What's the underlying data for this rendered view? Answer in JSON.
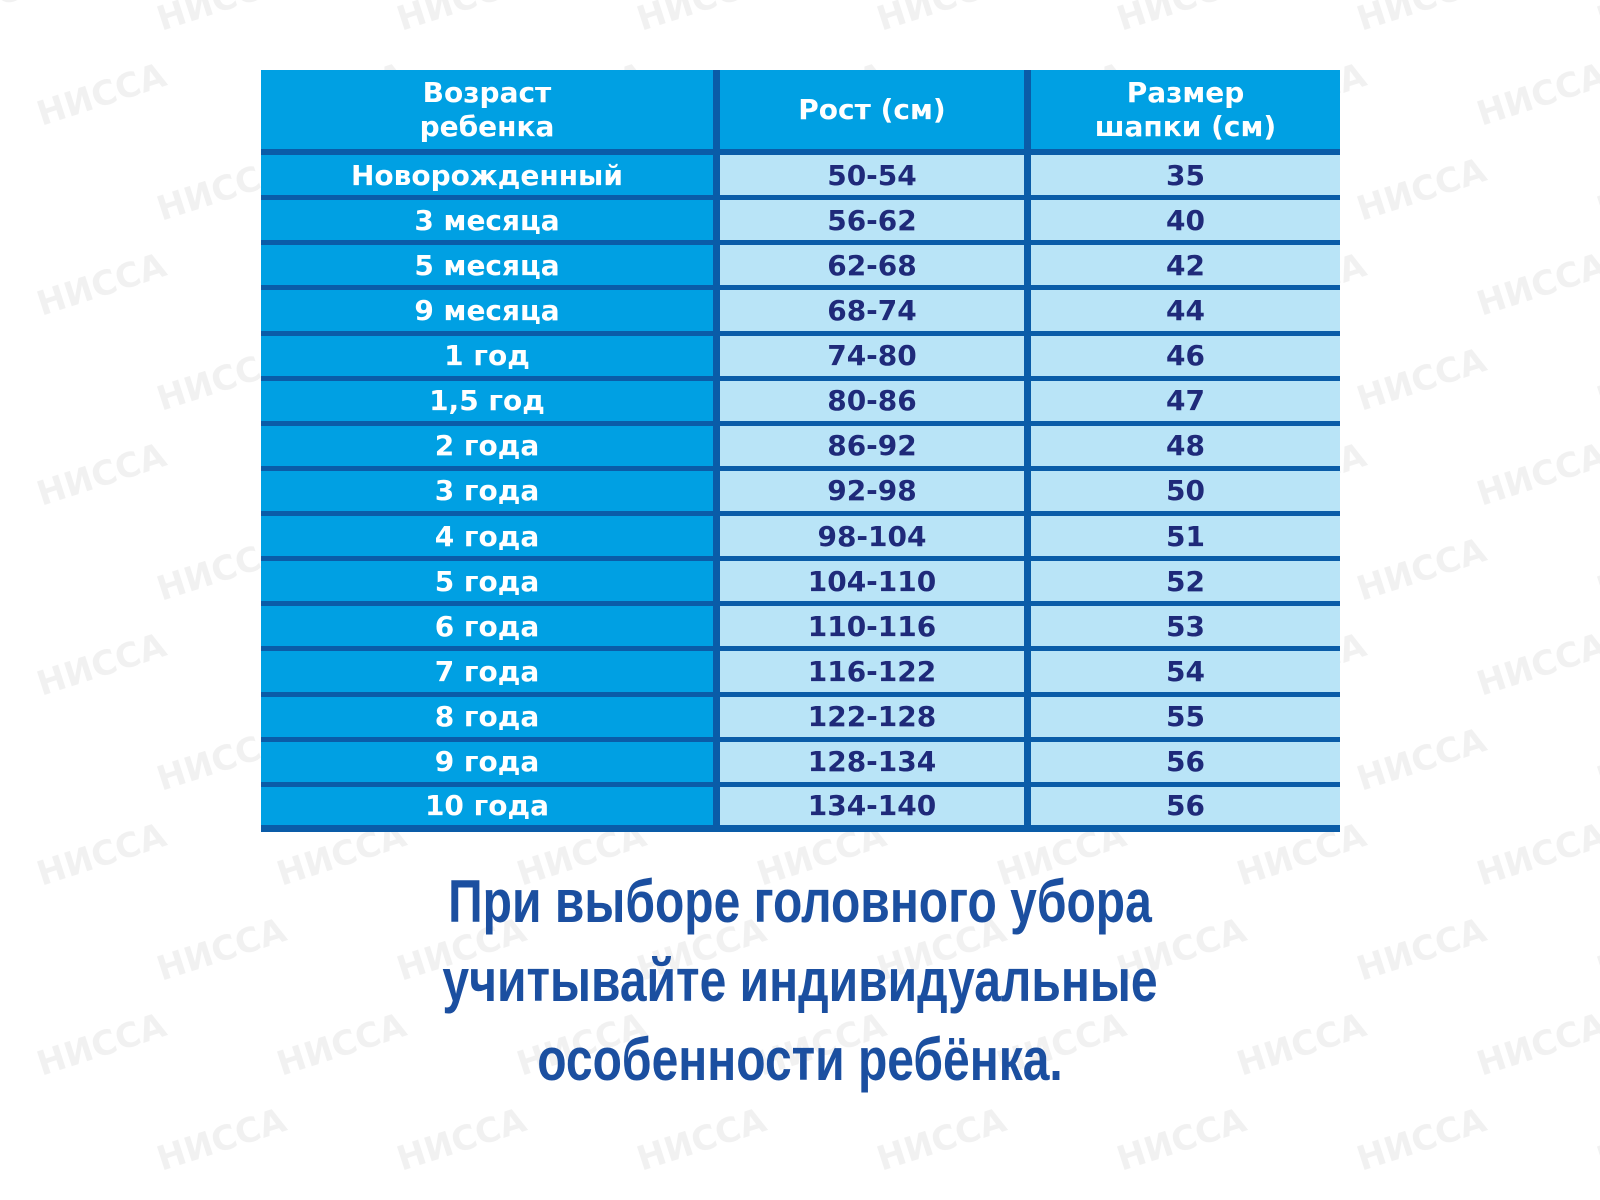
{
  "watermark": "НИССА",
  "colors": {
    "header_bg": "#00a0e3",
    "grid_lines": "#0a5ca8",
    "cell_bg": "#b9e4f7",
    "cell_text": "#1f2a7a",
    "note_text": "#1b4fa0"
  },
  "table": {
    "headers": [
      "Возраст\nребенка",
      "Рост (см)",
      "Размер\nшапки (см)"
    ],
    "rows": [
      [
        "Новорожденный",
        "50-54",
        "35"
      ],
      [
        "3 месяца",
        "56-62",
        "40"
      ],
      [
        "5 месяца",
        "62-68",
        "42"
      ],
      [
        "9 месяца",
        "68-74",
        "44"
      ],
      [
        "1 год",
        "74-80",
        "46"
      ],
      [
        "1,5 год",
        "80-86",
        "47"
      ],
      [
        "2 года",
        "86-92",
        "48"
      ],
      [
        "3 года",
        "92-98",
        "50"
      ],
      [
        "4 года",
        "98-104",
        "51"
      ],
      [
        "5 года",
        "104-110",
        "52"
      ],
      [
        "6 года",
        "110-116",
        "53"
      ],
      [
        "7 года",
        "116-122",
        "54"
      ],
      [
        "8 года",
        "122-128",
        "55"
      ],
      [
        "9 года",
        "128-134",
        "56"
      ],
      [
        "10 года",
        "134-140",
        "56"
      ]
    ]
  },
  "note": {
    "lines": [
      "При выборе головного убора",
      "учитывайте индивидуальные",
      "особенности ребёнка."
    ]
  }
}
